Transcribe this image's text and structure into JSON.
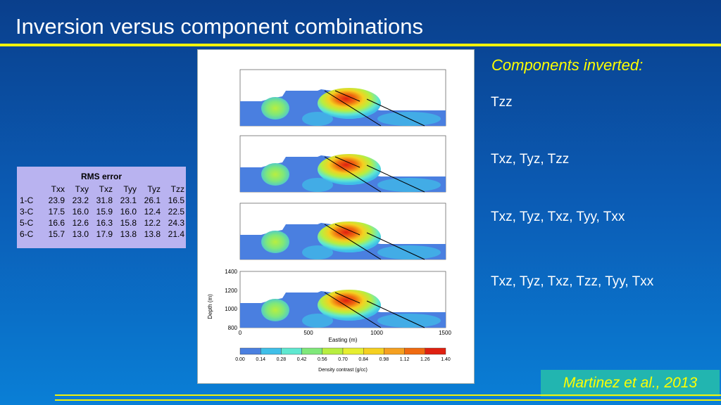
{
  "title": "Inversion versus component combinations",
  "rms": {
    "title": "RMS error",
    "headers": [
      "Txx",
      "Txy",
      "Txz",
      "Tyy",
      "Tyz",
      "Tzz"
    ],
    "rows": [
      {
        "label": "1-C",
        "values": [
          "23.9",
          "23.2",
          "31.8",
          "23.1",
          "26.1",
          "16.5"
        ]
      },
      {
        "label": "3-C",
        "values": [
          "17.5",
          "16.0",
          "15.9",
          "16.0",
          "12.4",
          "22.5"
        ]
      },
      {
        "label": "5-C",
        "values": [
          "16.6",
          "12.6",
          "16.3",
          "15.8",
          "12.2",
          "24.3"
        ]
      },
      {
        "label": "6-C",
        "values": [
          "15.7",
          "13.0",
          "17.9",
          "13.8",
          "13.8",
          "21.4"
        ]
      }
    ]
  },
  "components": {
    "heading": "Components inverted:",
    "items": [
      "Tzz",
      "Txz, Tyz, Tzz",
      "Txz, Tyz, Txz, Tyy, Txx",
      "Txz, Tyz, Txz, Tzz, Tyy, Txx"
    ]
  },
  "figure": {
    "ylabel": "Depth (m)",
    "xlabel": "Easting (m)",
    "yticks": [
      "1400",
      "1200",
      "1000",
      "800"
    ],
    "xticks": [
      "0",
      "500",
      "1000",
      "1500"
    ],
    "colorbar_label": "Density contrast (g/cc)",
    "colorbar_ticks": [
      "0.00",
      "0.14",
      "0.28",
      "0.42",
      "0.56",
      "0.70",
      "0.84",
      "0.98",
      "1.12",
      "1.26",
      "1.40"
    ],
    "colorbar_colors": [
      "#4a7fe0",
      "#3fbfe8",
      "#5fe8d0",
      "#7fe87a",
      "#b8ee40",
      "#e6ee30",
      "#f5d020",
      "#f5a020",
      "#f06a10",
      "#e02010"
    ]
  },
  "citation": "Martinez et al., 2013"
}
